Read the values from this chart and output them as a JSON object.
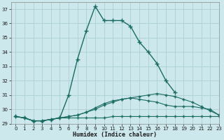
{
  "xlabel": "Humidex (Indice chaleur)",
  "bg_color": "#cce8ec",
  "grid_color": "#aacfd4",
  "line_color": "#1a6b62",
  "x_values": [
    0,
    1,
    2,
    3,
    4,
    5,
    6,
    7,
    8,
    9,
    10,
    11,
    12,
    13,
    14,
    15,
    16,
    17,
    18,
    19,
    20,
    21,
    22,
    23
  ],
  "series1": [
    29.5,
    29.4,
    29.2,
    29.2,
    29.3,
    29.4,
    31.0,
    33.5,
    35.5,
    37.2,
    36.2,
    36.2,
    36.2,
    35.8,
    34.7,
    34.0,
    33.2,
    32.0,
    31.2,
    null,
    null,
    null,
    null,
    null
  ],
  "series2": [
    29.5,
    29.4,
    29.2,
    29.2,
    29.3,
    29.4,
    29.5,
    29.6,
    29.8,
    30.0,
    30.3,
    30.5,
    30.7,
    30.8,
    30.9,
    31.0,
    31.1,
    31.0,
    30.9,
    30.7,
    30.5,
    30.2,
    29.9,
    29.6
  ],
  "series3": [
    29.5,
    29.4,
    29.2,
    29.2,
    29.3,
    29.4,
    29.4,
    29.4,
    29.4,
    29.4,
    29.4,
    29.5,
    29.5,
    29.5,
    29.5,
    29.5,
    29.5,
    29.5,
    29.5,
    29.5,
    29.5,
    29.5,
    29.5,
    29.5
  ],
  "series4": [
    29.5,
    29.4,
    29.2,
    29.2,
    29.3,
    29.4,
    29.5,
    29.6,
    29.8,
    30.1,
    30.4,
    30.6,
    30.7,
    30.8,
    30.7,
    30.6,
    30.5,
    30.3,
    30.2,
    30.2,
    30.2,
    30.1,
    30.0,
    29.6
  ],
  "ylim": [
    29.0,
    37.5
  ],
  "xlim": [
    -0.5,
    23
  ],
  "yticks": [
    29,
    30,
    31,
    32,
    33,
    34,
    35,
    36,
    37
  ],
  "xticks": [
    0,
    1,
    2,
    3,
    4,
    5,
    6,
    7,
    8,
    9,
    10,
    11,
    12,
    13,
    14,
    15,
    16,
    17,
    18,
    19,
    20,
    21,
    22,
    23
  ]
}
